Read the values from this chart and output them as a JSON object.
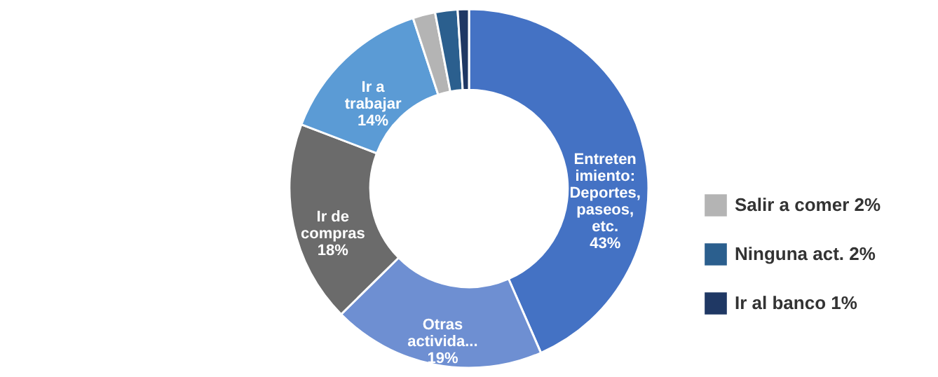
{
  "chart_data": {
    "type": "donut",
    "categories": [
      "Entretenimiento: Deportes, paseos, etc.",
      "Otras activida...",
      "Ir de compras",
      "Ir a trabajar",
      "Salir a comer",
      "Ninguna act.",
      "Ir al banco"
    ],
    "values": [
      43,
      19,
      18,
      14,
      2,
      2,
      1
    ],
    "value_labels": [
      "43%",
      "19%",
      "18%",
      "14%",
      "2%",
      "2%",
      "1%"
    ],
    "colors": [
      "#4472c4",
      "#6e8fd2",
      "#6b6b6b",
      "#5b9bd5",
      "#b4b4b4",
      "#2b5f8e",
      "#1f3864"
    ],
    "data_labels": true,
    "legend": "bottom right"
  }
}
